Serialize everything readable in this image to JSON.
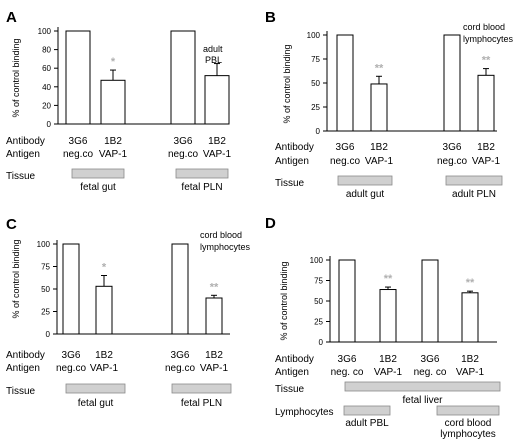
{
  "colors": {
    "star": "#b0b0b0",
    "tissue_bar": "#d0d0d0",
    "bar_fill": "#ffffff",
    "stroke": "#000000"
  },
  "chart_data": [
    {
      "panel": "A",
      "type": "bar",
      "ylabel": "% of control binding",
      "ylim": [
        0,
        100
      ],
      "yticks": [
        "0",
        "20",
        "40",
        "60",
        "80",
        "100"
      ],
      "note": [
        "adult",
        "PBL"
      ],
      "categories": [
        "3G6 neg.co",
        "1B2 VAP-1",
        "3G6 neg.co",
        "1B2 VAP-1"
      ],
      "values": [
        100,
        47,
        100,
        52
      ],
      "errors": [
        0,
        11,
        0,
        13
      ],
      "stars": [
        "",
        "*",
        "",
        ""
      ],
      "row_labels": [
        "Antibody",
        "Antigen"
      ],
      "antibody": [
        "3G6",
        "1B2",
        "3G6",
        "1B2"
      ],
      "antigen": [
        "neg.co",
        "VAP-1",
        "neg.co",
        "VAP-1"
      ],
      "tissue_label": "Tissue",
      "tissues": [
        "fetal gut",
        "fetal PLN"
      ]
    },
    {
      "panel": "B",
      "type": "bar",
      "ylabel": "% of control binding",
      "ylim": [
        0,
        100
      ],
      "yticks": [
        "0",
        "25",
        "50",
        "75",
        "100"
      ],
      "note": [
        "cord blood",
        "lymphocytes"
      ],
      "categories": [
        "3G6 neg.co",
        "1B2 VAP-1",
        "3G6 neg.co",
        "1B2 VAP-1"
      ],
      "values": [
        100,
        49,
        100,
        58
      ],
      "errors": [
        0,
        8,
        0,
        7
      ],
      "stars": [
        "",
        "**",
        "",
        "**"
      ],
      "row_labels": [
        "Antibody",
        "Antigen"
      ],
      "antibody": [
        "3G6",
        "1B2",
        "3G6",
        "1B2"
      ],
      "antigen": [
        "neg.co",
        "VAP-1",
        "neg.co",
        "VAP-1"
      ],
      "tissue_label": "Tissue",
      "tissues": [
        "adult gut",
        "adult PLN"
      ]
    },
    {
      "panel": "C",
      "type": "bar",
      "ylabel": "% of control binding",
      "ylim": [
        0,
        100
      ],
      "yticks": [
        "0",
        "25",
        "50",
        "75",
        "100"
      ],
      "note": [
        "cord blood",
        "lymphocytes"
      ],
      "categories": [
        "3G6 neg.co",
        "1B2 VAP-1",
        "3G6 neg.co",
        "1B2 VAP-1"
      ],
      "values": [
        100,
        53,
        100,
        40
      ],
      "errors": [
        0,
        12,
        0,
        3
      ],
      "stars": [
        "",
        "*",
        "",
        "**"
      ],
      "row_labels": [
        "Antibody",
        "Antigen"
      ],
      "antibody": [
        "3G6",
        "1B2",
        "3G6",
        "1B2"
      ],
      "antigen": [
        "neg.co",
        "VAP-1",
        "neg.co",
        "VAP-1"
      ],
      "tissue_label": "Tissue",
      "tissues": [
        "fetal gut",
        "fetal PLN"
      ]
    },
    {
      "panel": "D",
      "type": "bar",
      "ylabel": "% of control binding",
      "ylim": [
        0,
        100
      ],
      "yticks": [
        "0",
        "25",
        "50",
        "75",
        "100"
      ],
      "note": [],
      "categories": [
        "3G6 neg. co",
        "1B2 VAP-1",
        "3G6 neg. co",
        "1B2 VAP-1"
      ],
      "values": [
        100,
        64,
        100,
        60
      ],
      "errors": [
        0,
        3,
        0,
        2
      ],
      "stars": [
        "",
        "**",
        "",
        "**"
      ],
      "row_labels": [
        "Antibody",
        "Antigen"
      ],
      "antibody": [
        "3G6",
        "1B2",
        "3G6",
        "1B2"
      ],
      "antigen": [
        "neg. co",
        "VAP-1",
        "neg. co",
        "VAP-1"
      ],
      "tissue_label": "Tissue",
      "tissues": [
        "fetal liver"
      ],
      "lymphocytes_label": "Lymphocytes",
      "lymphocytes": [
        "adult PBL",
        "cord blood",
        "lymphocytes"
      ]
    }
  ]
}
